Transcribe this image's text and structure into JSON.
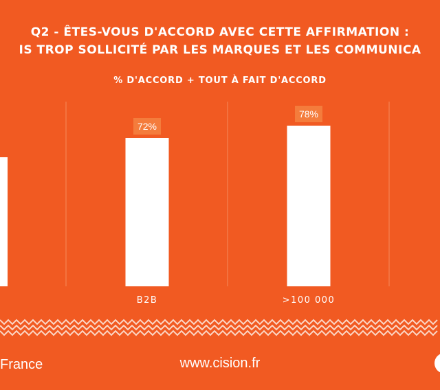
{
  "title_lines": [
    "Q2 - ÊTES-VOUS D'ACCORD AVEC CETTE AFFIRMATION :",
    "IS TROP SOLLICITÉ PAR LES MARQUES ET LES COMMUNICA"
  ],
  "subtitle": "% D'ACCORD + TOUT À FAIT D'ACCORD",
  "chart_data": {
    "type": "bar",
    "title": "Q2 - ÊTES-VOUS D'ACCORD AVEC CETTE AFFIRMATION : IS TROP SOLLICITÉ PAR LES MARQUES ET LES COMMUNICA",
    "subtitle": "% D'ACCORD + TOUT À FAIT D'ACCORD",
    "categories": [
      "",
      "B2B",
      ">100 000"
    ],
    "values": [
      null,
      72,
      78
    ],
    "data_labels": [
      "",
      "72%",
      "78%"
    ],
    "ylim": [
      0,
      100
    ],
    "grid": "vertical separators",
    "colors": {
      "bar": "#ffffff",
      "label_bg": "#f47c3c",
      "background": "#f15a22",
      "separator": "#f58a5c"
    }
  },
  "footer": {
    "left_text": "France",
    "website": "www.cision.fr"
  }
}
